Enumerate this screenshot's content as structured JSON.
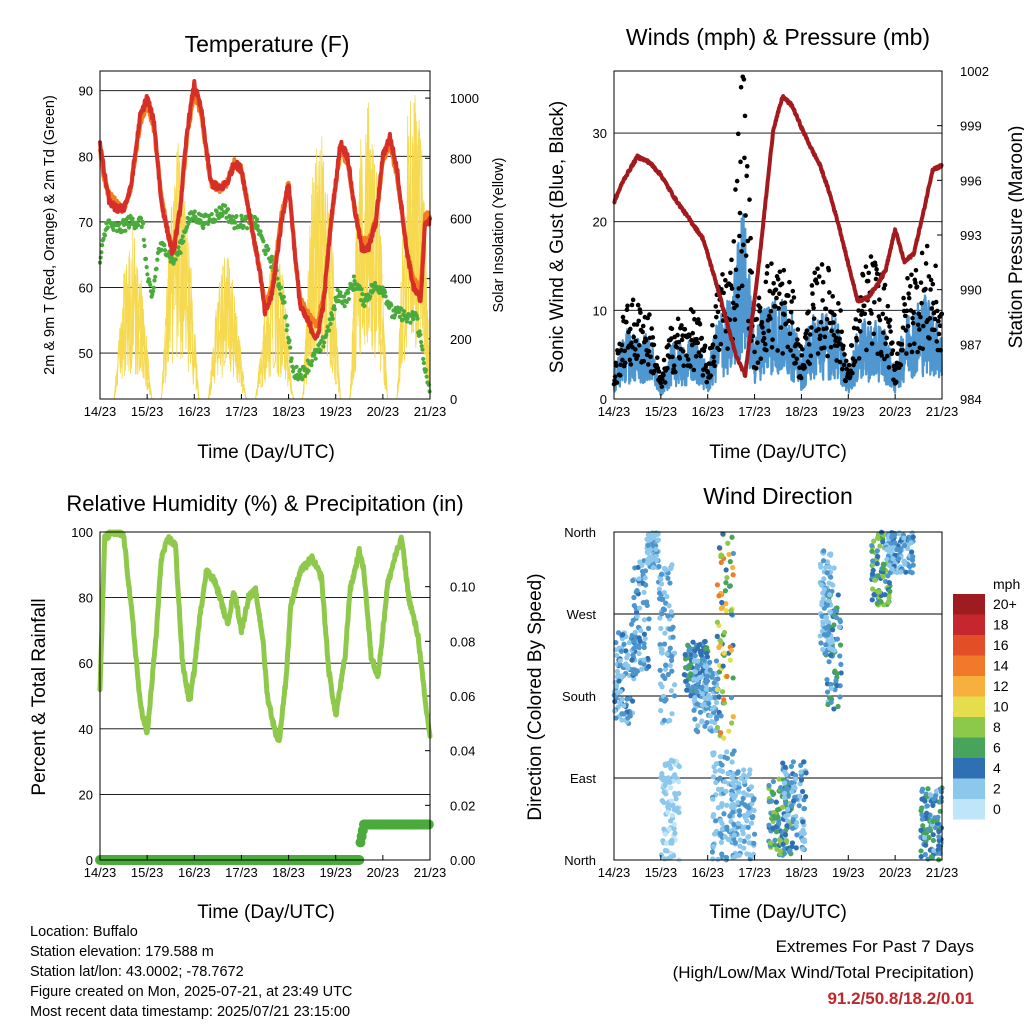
{
  "panels": {
    "temperature": {
      "title": "Temperature (F)",
      "ylabel_left": "2m & 9m T (Red, Orange) & 2m Td (Green)",
      "ylabel_right": "Solar Insolation (Yellow)",
      "xlabel": "Time (Day/UTC)",
      "left_ticks": [
        "50",
        "60",
        "70",
        "80",
        "90"
      ],
      "right_ticks": [
        "0",
        "200",
        "400",
        "600",
        "800",
        "1000"
      ]
    },
    "winds": {
      "title": "Winds (mph) & Pressure (mb)",
      "ylabel_left": "Sonic Wind & Gust (Blue, Black)",
      "ylabel_right": "Station Pressure (Maroon)",
      "xlabel": "Time (Day/UTC)",
      "left_ticks": [
        "0",
        "10",
        "20",
        "30"
      ],
      "right_ticks": [
        "984",
        "987",
        "990",
        "993",
        "996",
        "999",
        "1002"
      ]
    },
    "humidity": {
      "title": "Relative Humidity (%) & Precipitation (in)",
      "ylabel_left": "Percent & Total Rainfall",
      "xlabel": "Time (Day/UTC)",
      "left_ticks": [
        "0",
        "20",
        "40",
        "60",
        "80",
        "100"
      ],
      "right_ticks": [
        "0.00",
        "0.02",
        "0.04",
        "0.06",
        "0.08",
        "0.10"
      ]
    },
    "direction": {
      "title": "Wind Direction",
      "ylabel_left": "Direction (Colored By Speed)",
      "xlabel": "Time (Day/UTC)",
      "left_ticks": [
        "North",
        "East",
        "South",
        "West",
        "North"
      ],
      "legend_title": "mph",
      "legend_labels": [
        "20+",
        "18",
        "16",
        "14",
        "12",
        "10",
        "8",
        "6",
        "4",
        "2",
        "0"
      ]
    }
  },
  "x_ticks": [
    "14/23",
    "15/23",
    "16/23",
    "17/23",
    "18/23",
    "19/23",
    "20/23",
    "21/23"
  ],
  "info": {
    "location": "Location: Buffalo",
    "elevation": "Station elevation: 179.588 m",
    "latlon": "Station lat/lon: 43.0002; -78.7672",
    "created": "Figure created on Mon, 2025-07-21, at 23:49 UTC",
    "recent": "Most recent data timestamp: 2025/07/21 23:15:00"
  },
  "extremes": {
    "title": "Extremes For Past 7 Days",
    "subtitle": "(High/Low/Max Wind/Total Precipitation)",
    "values": "91.2/50.8/18.2/0.01"
  },
  "colors": {
    "temp_2m": "#d62f27",
    "temp_9m": "#f47c20",
    "dewpoint": "#4aab3c",
    "solar": "#f6d94e",
    "wind": "#4f97d1",
    "gust": "#000000",
    "pressure": "#a31a1e",
    "rh": "#8ec94b",
    "precip": "#4aab3c",
    "speed_scale": [
      "#bfe6f8",
      "#8cc7ec",
      "#4d95cd",
      "#2f6fb3",
      "#46a55b",
      "#8cc94b",
      "#e6dd4c",
      "#f7b03e",
      "#f07a2a",
      "#e24e27",
      "#c6262e",
      "#9e1c1f"
    ]
  },
  "chart_data": [
    {
      "type": "line",
      "title": "Temperature (F)",
      "xlabel": "Time (Day/UTC)",
      "ylabel": "2m & 9m T (Red, Orange) & 2m Td (Green)",
      "y2label": "Solar Insolation (Yellow)",
      "x": [
        "14/23",
        "15/23",
        "16/23",
        "17/23",
        "18/23",
        "19/23",
        "20/23",
        "21/23"
      ],
      "xlim": [
        0,
        7
      ],
      "ylim": [
        43,
        93
      ],
      "y2lim": [
        0,
        1090
      ],
      "series": [
        {
          "name": "2m T",
          "color": "#d62f27",
          "x": [
            0,
            0.1,
            0.2,
            0.35,
            0.5,
            0.65,
            0.85,
            1.0,
            1.15,
            1.3,
            1.45,
            1.55,
            1.7,
            1.85,
            2.0,
            2.15,
            2.35,
            2.55,
            2.7,
            2.85,
            3.0,
            3.1,
            3.25,
            3.4,
            3.5,
            3.65,
            3.85,
            4.0,
            4.15,
            4.25,
            4.4,
            4.6,
            4.75,
            4.9,
            5.1,
            5.25,
            5.4,
            5.55,
            5.7,
            5.85,
            6.0,
            6.15,
            6.3,
            6.5,
            6.65,
            6.8,
            6.9,
            7.0
          ],
          "values": [
            82,
            77,
            73,
            72,
            72,
            75,
            86,
            89,
            85,
            73,
            68,
            65,
            72,
            84,
            91,
            87,
            76,
            75,
            76,
            79,
            78,
            74,
            68,
            62,
            56,
            59,
            70,
            76,
            64,
            57,
            55,
            52,
            58,
            70,
            82,
            80,
            72,
            66,
            66,
            70,
            80,
            83,
            78,
            66,
            60,
            58,
            70,
            70
          ]
        },
        {
          "name": "9m T",
          "color": "#f47c20",
          "x": [
            0,
            0.1,
            0.2,
            0.35,
            0.5,
            0.65,
            0.85,
            1.0,
            1.15,
            1.3,
            1.45,
            1.55,
            1.7,
            1.85,
            2.0,
            2.15,
            2.35,
            2.55,
            2.7,
            2.85,
            3.0,
            3.1,
            3.25,
            3.4,
            3.5,
            3.65,
            3.85,
            4.0,
            4.15,
            4.25,
            4.4,
            4.6,
            4.75,
            4.9,
            5.1,
            5.25,
            5.4,
            5.55,
            5.7,
            5.85,
            6.0,
            6.15,
            6.3,
            6.5,
            6.65,
            6.8,
            6.9,
            7.0
          ],
          "values": [
            81,
            76,
            74,
            73,
            72,
            75,
            85,
            88,
            84,
            74,
            68,
            66,
            72,
            83,
            90,
            86,
            76,
            75,
            76,
            79,
            78,
            74,
            68,
            62,
            57,
            60,
            71,
            76,
            64,
            58,
            56,
            54,
            59,
            70,
            81,
            79,
            72,
            67,
            67,
            70,
            79,
            82,
            77,
            66,
            61,
            60,
            71,
            71
          ]
        },
        {
          "name": "2m Td",
          "color": "#4aab3c",
          "x": [
            0,
            0.15,
            0.3,
            0.45,
            0.6,
            0.75,
            0.9,
            1.0,
            1.1,
            1.25,
            1.4,
            1.55,
            1.7,
            1.85,
            2.0,
            2.2,
            2.45,
            2.65,
            2.8,
            2.95,
            3.1,
            3.3,
            3.5,
            3.7,
            3.9,
            4.0,
            4.1,
            4.3,
            4.5,
            4.7,
            4.9,
            5.05,
            5.2,
            5.4,
            5.6,
            5.8,
            6.0,
            6.2,
            6.4,
            6.55,
            6.7,
            6.85,
            6.95,
            7.0
          ],
          "values": [
            64,
            70,
            69,
            69,
            70,
            70,
            70,
            62,
            58,
            66,
            66,
            64,
            66,
            70,
            71,
            70,
            71,
            72,
            70,
            70,
            70,
            70,
            66,
            63,
            58,
            52,
            47,
            47,
            49,
            51,
            55,
            59,
            58,
            61,
            58,
            60,
            60,
            56,
            56,
            55,
            56,
            50,
            45,
            44
          ]
        },
        {
          "name": "Solar",
          "axis": "right",
          "color": "#f6d94e",
          "x": [
            0,
            0.3,
            0.5,
            0.7,
            0.9,
            1.1,
            1.3,
            1.5,
            1.7,
            1.9,
            2.1,
            2.3,
            2.5,
            2.7,
            2.9,
            3.1,
            3.3,
            3.5,
            3.7,
            3.9,
            4.1,
            4.3,
            4.5,
            4.7,
            4.9,
            5.1,
            5.3,
            5.5,
            5.7,
            5.9,
            6.1,
            6.3,
            6.5,
            6.7,
            6.9,
            7.0
          ],
          "values": [
            0,
            0,
            420,
            580,
            380,
            0,
            0,
            680,
            900,
            520,
            0,
            0,
            380,
            520,
            300,
            0,
            0,
            300,
            540,
            420,
            0,
            0,
            780,
            900,
            640,
            0,
            0,
            880,
            1000,
            760,
            0,
            0,
            960,
            1050,
            700,
            0
          ]
        }
      ]
    },
    {
      "type": "line",
      "title": "Winds (mph) & Pressure (mb)",
      "xlabel": "Time (Day/UTC)",
      "ylabel": "Sonic Wind & Gust (Blue, Black)",
      "y2label": "Station Pressure (Maroon)",
      "x": [
        "14/23",
        "15/23",
        "16/23",
        "17/23",
        "18/23",
        "19/23",
        "20/23",
        "21/23"
      ],
      "xlim": [
        0,
        7
      ],
      "ylim": [
        0,
        37
      ],
      "y2lim": [
        984,
        1002
      ],
      "series": [
        {
          "name": "Sonic Wind",
          "color": "#4f97d1",
          "x": [
            0,
            0.5,
            1.0,
            1.5,
            2.0,
            2.5,
            2.75,
            3.0,
            3.5,
            4.0,
            4.5,
            5.0,
            5.5,
            6.0,
            6.5,
            7.0
          ],
          "values": [
            2,
            5,
            1,
            4,
            2,
            8,
            14,
            5,
            8,
            3,
            7,
            2,
            6,
            2,
            8,
            5
          ]
        },
        {
          "name": "Gust",
          "color": "#000000",
          "x": [
            0,
            0.5,
            1.0,
            1.5,
            2.0,
            2.5,
            2.75,
            3.0,
            3.5,
            4.0,
            4.5,
            5.0,
            5.5,
            6.0,
            6.5,
            7.0
          ],
          "values": [
            3,
            10,
            2,
            8,
            4,
            15,
            34,
            8,
            14,
            5,
            14,
            3,
            15,
            4,
            15,
            10
          ]
        },
        {
          "name": "Station Pressure",
          "axis": "right",
          "color": "#a31a1e",
          "x": [
            0,
            0.2,
            0.5,
            0.75,
            1.0,
            1.3,
            1.6,
            1.9,
            2.2,
            2.4,
            2.6,
            2.8,
            3.1,
            3.4,
            3.6,
            3.8,
            4.0,
            4.2,
            4.4,
            4.6,
            4.8,
            5.0,
            5.2,
            5.4,
            5.6,
            5.8,
            6.0,
            6.2,
            6.4,
            6.6,
            6.8,
            7.0
          ],
          "values": [
            994.8,
            996.0,
            997.3,
            997.0,
            996.3,
            995.0,
            993.9,
            992.8,
            990.2,
            988.3,
            986.4,
            985.3,
            991.6,
            998.8,
            1000.6,
            1000.1,
            998.9,
            997.8,
            996.8,
            995.3,
            993.5,
            991.4,
            989.4,
            989.5,
            990.2,
            991.1,
            993.3,
            991.5,
            992.0,
            994.2,
            996.6,
            996.8
          ]
        }
      ]
    },
    {
      "type": "line",
      "title": "Relative Humidity (%) & Precipitation (in)",
      "xlabel": "Time (Day/UTC)",
      "ylabel": "Percent & Total Rainfall",
      "x": [
        "14/23",
        "15/23",
        "16/23",
        "17/23",
        "18/23",
        "19/23",
        "20/23",
        "21/23"
      ],
      "xlim": [
        0,
        7
      ],
      "ylim": [
        0,
        100
      ],
      "y2lim": [
        0,
        0.12
      ],
      "series": [
        {
          "name": "RH",
          "color": "#8ec94b",
          "x": [
            0,
            0.1,
            0.25,
            0.5,
            0.7,
            0.85,
            1.0,
            1.2,
            1.3,
            1.45,
            1.6,
            1.75,
            1.9,
            2.0,
            2.1,
            2.25,
            2.4,
            2.55,
            2.7,
            2.85,
            3.0,
            3.15,
            3.3,
            3.45,
            3.55,
            3.7,
            3.8,
            3.95,
            4.05,
            4.25,
            4.5,
            4.7,
            4.85,
            5.0,
            5.2,
            5.3,
            5.5,
            5.6,
            5.75,
            5.9,
            6.1,
            6.25,
            6.4,
            6.55,
            6.75,
            6.9,
            7.0
          ],
          "values": [
            52,
            98,
            100,
            99,
            72,
            48,
            38,
            70,
            92,
            98,
            96,
            60,
            48,
            58,
            72,
            88,
            86,
            80,
            72,
            82,
            70,
            80,
            82,
            68,
            50,
            40,
            36,
            56,
            78,
            88,
            92,
            86,
            58,
            44,
            62,
            82,
            94,
            88,
            62,
            56,
            84,
            92,
            98,
            80,
            68,
            48,
            38
          ]
        },
        {
          "name": "Total Rainfall",
          "axis": "right",
          "color": "#4aab3c",
          "x": [
            0,
            5.5,
            5.52,
            5.6,
            7.0
          ],
          "values": [
            0,
            0,
            0.006,
            0.013,
            0.013
          ]
        }
      ]
    },
    {
      "type": "scatter",
      "title": "Wind Direction",
      "xlabel": "Time (Day/UTC)",
      "ylabel": "Direction (Colored By Speed)",
      "x": [
        "14/23",
        "15/23",
        "16/23",
        "17/23",
        "18/23",
        "19/23",
        "20/23",
        "21/23"
      ],
      "y_categories": [
        "North",
        "East",
        "South",
        "West",
        "North"
      ],
      "xlim": [
        0,
        7
      ],
      "ylim": [
        0,
        360
      ],
      "color_scale": {
        "label": "mph",
        "ticks": [
          0,
          2,
          4,
          6,
          8,
          10,
          12,
          14,
          16,
          18,
          20
        ]
      },
      "clusters": [
        {
          "x": [
            0.0,
            0.45
          ],
          "y": [
            150,
            260
          ],
          "speed": [
            1,
            6
          ]
        },
        {
          "x": [
            0.4,
            0.75
          ],
          "y": [
            200,
            330
          ],
          "speed": [
            2,
            6
          ]
        },
        {
          "x": [
            0.7,
            0.95
          ],
          "y": [
            320,
            360
          ],
          "speed": [
            1,
            4
          ]
        },
        {
          "x": [
            0.95,
            1.3
          ],
          "y": [
            150,
            330
          ],
          "speed": [
            1,
            5
          ]
        },
        {
          "x": [
            1.0,
            1.4
          ],
          "y": [
            0,
            110
          ],
          "speed": [
            0,
            3
          ]
        },
        {
          "x": [
            1.5,
            2.0
          ],
          "y": [
            180,
            240
          ],
          "speed": [
            3,
            8
          ]
        },
        {
          "x": [
            1.7,
            2.2
          ],
          "y": [
            140,
            220
          ],
          "speed": [
            1,
            5
          ]
        },
        {
          "x": [
            2.1,
            2.6
          ],
          "y": [
            0,
            120
          ],
          "speed": [
            1,
            4
          ]
        },
        {
          "x": [
            2.2,
            2.55
          ],
          "y": [
            130,
            360
          ],
          "speed": [
            4,
            16
          ]
        },
        {
          "x": [
            2.5,
            3.0
          ],
          "y": [
            0,
            100
          ],
          "speed": [
            1,
            4
          ]
        },
        {
          "x": [
            3.3,
            3.8
          ],
          "y": [
            5,
            90
          ],
          "speed": [
            3,
            11
          ]
        },
        {
          "x": [
            3.6,
            4.1
          ],
          "y": [
            10,
            110
          ],
          "speed": [
            1,
            6
          ]
        },
        {
          "x": [
            4.5,
            4.85
          ],
          "y": [
            160,
            300
          ],
          "speed": [
            2,
            9
          ]
        },
        {
          "x": [
            4.4,
            4.7
          ],
          "y": [
            230,
            340
          ],
          "speed": [
            1,
            4
          ]
        },
        {
          "x": [
            5.5,
            5.9
          ],
          "y": [
            280,
            360
          ],
          "speed": [
            3,
            11
          ]
        },
        {
          "x": [
            5.8,
            6.4
          ],
          "y": [
            315,
            360
          ],
          "speed": [
            1,
            6
          ]
        },
        {
          "x": [
            6.55,
            7.0
          ],
          "y": [
            0,
            80
          ],
          "speed": [
            2,
            9
          ]
        }
      ]
    }
  ]
}
